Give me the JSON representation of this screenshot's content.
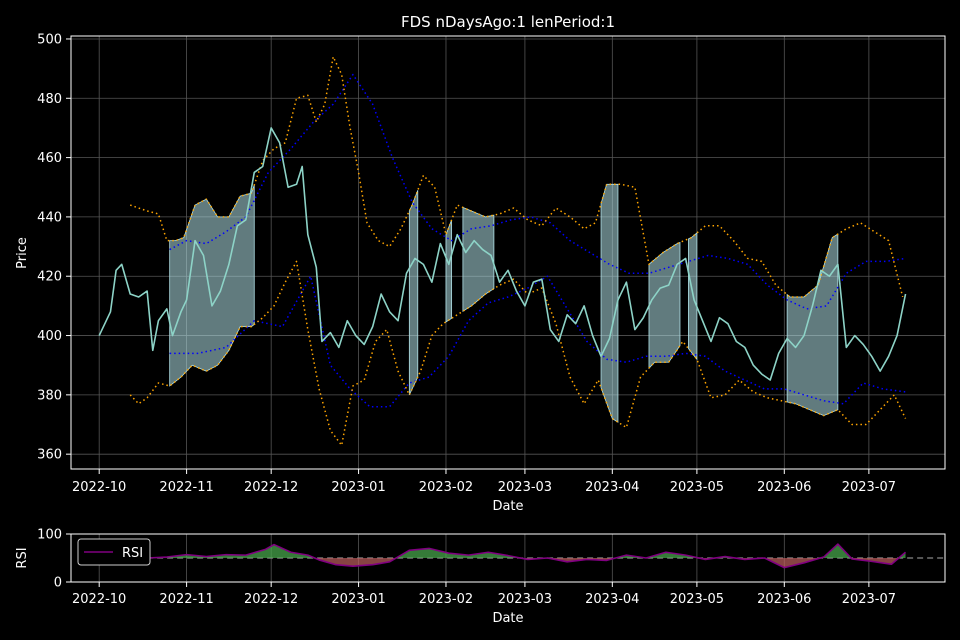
{
  "chart_data": [
    {
      "type": "line",
      "title": "FDS nDaysAgo:1 lenPeriod:1",
      "xlabel": "Date",
      "ylabel": "Price",
      "x_ticks": [
        "2022-10",
        "2022-11",
        "2022-12",
        "2023-01",
        "2023-02",
        "2023-03",
        "2023-04",
        "2023-05",
        "2023-06",
        "2023-07"
      ],
      "y_ticks": [
        360,
        380,
        400,
        420,
        440,
        460,
        480,
        500
      ],
      "xlim": [
        "2022-09-21",
        "2023-07-28"
      ],
      "ylim": [
        355,
        501
      ],
      "grid": true,
      "colors": {
        "price": "#8dd3c7",
        "envelope": "#ffa500",
        "ma": "#0000ff",
        "shade": "#b0e0e6",
        "rsi": "#800080"
      },
      "series": [
        {
          "key": "price",
          "x": [
            "2022-10-01",
            "2022-10-05",
            "2022-10-07",
            "2022-10-09",
            "2022-10-12",
            "2022-10-15",
            "2022-10-18",
            "2022-10-20",
            "2022-10-22",
            "2022-10-25",
            "2022-10-27",
            "2022-10-30",
            "2022-11-01",
            "2022-11-04",
            "2022-11-07",
            "2022-11-10",
            "2022-11-13",
            "2022-11-16",
            "2022-11-19",
            "2022-11-22",
            "2022-11-25",
            "2022-11-28",
            "2022-12-01",
            "2022-12-04",
            "2022-12-07",
            "2022-12-10",
            "2022-12-12",
            "2022-12-14",
            "2022-12-17",
            "2022-12-19",
            "2022-12-22",
            "2022-12-25",
            "2022-12-28",
            "2022-12-31",
            "2023-01-03",
            "2023-01-06",
            "2023-01-09",
            "2023-01-12",
            "2023-01-15",
            "2023-01-18",
            "2023-01-21",
            "2023-01-24",
            "2023-01-27",
            "2023-01-30",
            "2023-02-02",
            "2023-02-05",
            "2023-02-08",
            "2023-02-11",
            "2023-02-14",
            "2023-02-17",
            "2023-02-20",
            "2023-02-23",
            "2023-02-26",
            "2023-03-01",
            "2023-03-04",
            "2023-03-07",
            "2023-03-10",
            "2023-03-13",
            "2023-03-16",
            "2023-03-19",
            "2023-03-22",
            "2023-03-25",
            "2023-03-28",
            "2023-03-31",
            "2023-04-03",
            "2023-04-06",
            "2023-04-09",
            "2023-04-12",
            "2023-04-15",
            "2023-04-18",
            "2023-04-21",
            "2023-04-24",
            "2023-04-27",
            "2023-04-30",
            "2023-05-03",
            "2023-05-06",
            "2023-05-09",
            "2023-05-12",
            "2023-05-15",
            "2023-05-18",
            "2023-05-21",
            "2023-05-24",
            "2023-05-27",
            "2023-05-30",
            "2023-06-02",
            "2023-06-05",
            "2023-06-08",
            "2023-06-11",
            "2023-06-14",
            "2023-06-17",
            "2023-06-20",
            "2023-06-23",
            "2023-06-26",
            "2023-06-29",
            "2023-07-02",
            "2023-07-05",
            "2023-07-08",
            "2023-07-11",
            "2023-07-14"
          ],
          "values": [
            400,
            408,
            422,
            424,
            414,
            413,
            415,
            395,
            405,
            409,
            400,
            408,
            412,
            432,
            427,
            410,
            415,
            424,
            437,
            439,
            455,
            457,
            470,
            465,
            450,
            451,
            457,
            434,
            423,
            398,
            401,
            396,
            405,
            400,
            397,
            403,
            414,
            408,
            405,
            421,
            426,
            424,
            418,
            431,
            424,
            434,
            428,
            432,
            429,
            427,
            418,
            422,
            415,
            410,
            418,
            419,
            402,
            398,
            407,
            404,
            410,
            400,
            393,
            399,
            412,
            418,
            402,
            406,
            412,
            416,
            417,
            424,
            426,
            412,
            405,
            398,
            406,
            404,
            398,
            396,
            390,
            387,
            385,
            394,
            399,
            396,
            400,
            410,
            422,
            420,
            424,
            396,
            400,
            397,
            393,
            388,
            393,
            400,
            414
          ]
        },
        {
          "key": "upper",
          "x": [
            "2022-10-12",
            "2022-10-18",
            "2022-10-22",
            "2022-10-25",
            "2022-10-28",
            "2022-10-31",
            "2022-11-04",
            "2022-11-08",
            "2022-11-12",
            "2022-11-16",
            "2022-11-20",
            "2022-11-24",
            "2022-11-28",
            "2022-12-02",
            "2022-12-06",
            "2022-12-10",
            "2022-12-14",
            "2022-12-17",
            "2022-12-20",
            "2022-12-23",
            "2022-12-26",
            "2022-12-29",
            "2023-01-01",
            "2023-01-04",
            "2023-01-08",
            "2023-01-12",
            "2023-01-16",
            "2023-01-20",
            "2023-01-24",
            "2023-01-28",
            "2023-02-01",
            "2023-02-05",
            "2023-02-10",
            "2023-02-15",
            "2023-02-20",
            "2023-02-25",
            "2023-03-02",
            "2023-03-07",
            "2023-03-12",
            "2023-03-17",
            "2023-03-22",
            "2023-03-26",
            "2023-03-30",
            "2023-04-04",
            "2023-04-09",
            "2023-04-14",
            "2023-04-19",
            "2023-04-24",
            "2023-04-29",
            "2023-05-04",
            "2023-05-09",
            "2023-05-14",
            "2023-05-19",
            "2023-05-24",
            "2023-05-29",
            "2023-06-03",
            "2023-06-08",
            "2023-06-13",
            "2023-06-18",
            "2023-06-23",
            "2023-06-28",
            "2023-07-03",
            "2023-07-08",
            "2023-07-13"
          ],
          "values": [
            444,
            442,
            441,
            432,
            432,
            433,
            444,
            446,
            440,
            440,
            447,
            448,
            459,
            463,
            465,
            480,
            481,
            472,
            478,
            494,
            488,
            470,
            455,
            438,
            432,
            430,
            436,
            444,
            454,
            450,
            434,
            444,
            442,
            440,
            441,
            443,
            439,
            437,
            443,
            440,
            436,
            438,
            451,
            451,
            450,
            424,
            428,
            431,
            433,
            437,
            437,
            432,
            426,
            425,
            417,
            413,
            413,
            417,
            433,
            436,
            438,
            435,
            432,
            413
          ]
        },
        {
          "key": "lower",
          "x": [
            "2022-10-12",
            "2022-10-15",
            "2022-10-18",
            "2022-10-22",
            "2022-10-26",
            "2022-10-30",
            "2022-11-03",
            "2022-11-08",
            "2022-11-12",
            "2022-11-16",
            "2022-11-20",
            "2022-11-24",
            "2022-11-28",
            "2022-12-02",
            "2022-12-06",
            "2022-12-10",
            "2022-12-14",
            "2022-12-18",
            "2022-12-22",
            "2022-12-26",
            "2022-12-30",
            "2023-01-03",
            "2023-01-07",
            "2023-01-11",
            "2023-01-15",
            "2023-01-19",
            "2023-01-23",
            "2023-01-27",
            "2023-01-31",
            "2023-02-05",
            "2023-02-10",
            "2023-02-15",
            "2023-02-20",
            "2023-02-25",
            "2023-03-02",
            "2023-03-07",
            "2023-03-12",
            "2023-03-17",
            "2023-03-22",
            "2023-03-27",
            "2023-04-01",
            "2023-04-06",
            "2023-04-11",
            "2023-04-16",
            "2023-04-21",
            "2023-04-26",
            "2023-05-01",
            "2023-05-06",
            "2023-05-11",
            "2023-05-16",
            "2023-05-21",
            "2023-05-26",
            "2023-05-31",
            "2023-06-05",
            "2023-06-10",
            "2023-06-15",
            "2023-06-20",
            "2023-06-25",
            "2023-06-30",
            "2023-07-05",
            "2023-07-10",
            "2023-07-14"
          ],
          "values": [
            380,
            377,
            379,
            384,
            383,
            386,
            390,
            388,
            390,
            395,
            403,
            403,
            406,
            410,
            418,
            425,
            402,
            382,
            368,
            363,
            383,
            385,
            398,
            402,
            388,
            380,
            388,
            400,
            404,
            407,
            410,
            414,
            417,
            419,
            414,
            416,
            404,
            386,
            377,
            385,
            372,
            369,
            386,
            391,
            391,
            398,
            392,
            379,
            380,
            385,
            381,
            379,
            378,
            377,
            375,
            373,
            375,
            370,
            370,
            375,
            380,
            372
          ]
        },
        {
          "key": "ma_upper",
          "x": [
            "2022-10-26",
            "2022-11-01",
            "2022-11-08",
            "2022-11-15",
            "2022-11-22",
            "2022-11-30",
            "2022-12-08",
            "2022-12-16",
            "2022-12-23",
            "2022-12-30",
            "2023-01-06",
            "2023-01-13",
            "2023-01-20",
            "2023-01-27",
            "2023-02-03",
            "2023-02-10",
            "2023-02-17",
            "2023-02-24",
            "2023-03-03",
            "2023-03-10",
            "2023-03-17",
            "2023-03-24",
            "2023-03-31",
            "2023-04-07",
            "2023-04-14",
            "2023-04-21",
            "2023-04-28",
            "2023-05-05",
            "2023-05-12",
            "2023-05-19",
            "2023-05-26",
            "2023-06-02",
            "2023-06-09",
            "2023-06-16",
            "2023-06-23",
            "2023-06-30",
            "2023-07-07",
            "2023-07-14"
          ],
          "values": [
            429,
            432,
            431,
            435,
            440,
            455,
            463,
            472,
            478,
            488,
            478,
            460,
            445,
            436,
            432,
            436,
            437,
            439,
            440,
            438,
            432,
            428,
            424,
            421,
            421,
            423,
            425,
            427,
            426,
            424,
            417,
            412,
            409,
            410,
            421,
            425,
            425,
            426
          ]
        },
        {
          "key": "ma_lower",
          "x": [
            "2022-10-26",
            "2022-11-05",
            "2022-11-15",
            "2022-11-25",
            "2022-12-05",
            "2022-12-15",
            "2022-12-22",
            "2022-12-29",
            "2023-01-05",
            "2023-01-12",
            "2023-01-19",
            "2023-01-26",
            "2023-02-02",
            "2023-02-09",
            "2023-02-16",
            "2023-02-23",
            "2023-03-02",
            "2023-03-09",
            "2023-03-16",
            "2023-03-23",
            "2023-03-30",
            "2023-04-06",
            "2023-04-13",
            "2023-04-20",
            "2023-04-27",
            "2023-05-04",
            "2023-05-11",
            "2023-05-18",
            "2023-05-25",
            "2023-06-01",
            "2023-06-08",
            "2023-06-15",
            "2023-06-22",
            "2023-06-29",
            "2023-07-06",
            "2023-07-14"
          ],
          "values": [
            394,
            394,
            396,
            405,
            403,
            420,
            390,
            382,
            376,
            376,
            384,
            386,
            393,
            405,
            411,
            413,
            416,
            420,
            409,
            398,
            392,
            391,
            393,
            393,
            394,
            393,
            388,
            385,
            382,
            382,
            380,
            378,
            377,
            384,
            382,
            381
          ]
        },
        {
          "key": "rsi",
          "x": [
            "2022-10-18",
            "2022-10-25",
            "2022-11-01",
            "2022-11-08",
            "2022-11-15",
            "2022-11-22",
            "2022-11-29",
            "2022-12-02",
            "2022-12-08",
            "2022-12-14",
            "2022-12-18",
            "2022-12-24",
            "2022-12-30",
            "2023-01-06",
            "2023-01-12",
            "2023-01-19",
            "2023-01-26",
            "2023-02-02",
            "2023-02-09",
            "2023-02-16",
            "2023-02-23",
            "2023-03-02",
            "2023-03-09",
            "2023-03-16",
            "2023-03-23",
            "2023-03-30",
            "2023-04-06",
            "2023-04-13",
            "2023-04-20",
            "2023-04-27",
            "2023-05-04",
            "2023-05-11",
            "2023-05-18",
            "2023-05-25",
            "2023-06-01",
            "2023-06-08",
            "2023-06-15",
            "2023-06-20",
            "2023-06-25",
            "2023-07-02",
            "2023-07-09",
            "2023-07-14"
          ],
          "values": [
            50,
            52,
            57,
            53,
            57,
            56,
            68,
            78,
            62,
            56,
            46,
            36,
            33,
            36,
            42,
            66,
            70,
            60,
            56,
            62,
            55,
            47,
            50,
            42,
            47,
            45,
            56,
            50,
            62,
            56,
            47,
            53,
            47,
            50,
            30,
            40,
            52,
            79,
            48,
            43,
            37,
            62
          ]
        }
      ],
      "shaded_ranges": [
        [
          "2022-10-26",
          "2022-11-25"
        ],
        [
          "2023-01-19",
          "2023-01-22"
        ],
        [
          "2023-02-01",
          "2023-02-03"
        ],
        [
          "2023-02-07",
          "2023-02-18"
        ],
        [
          "2023-03-28",
          "2023-04-03"
        ],
        [
          "2023-04-14",
          "2023-04-25"
        ],
        [
          "2023-04-28",
          "2023-05-01"
        ],
        [
          "2023-06-02",
          "2023-06-20"
        ]
      ]
    },
    {
      "type": "area",
      "xlabel": "Date",
      "ylabel": "RSI",
      "y_ticks": [
        0,
        100
      ],
      "ylim": [
        0,
        100
      ],
      "baseline": 50,
      "legend": {
        "position": "top-left",
        "label": "RSI"
      }
    }
  ]
}
